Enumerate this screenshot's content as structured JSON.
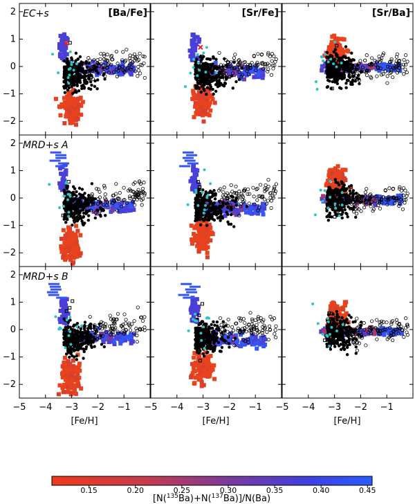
{
  "chart_data": {
    "type": "scatter",
    "description_rows": [
      "EC+s",
      "MRD+s A",
      "MRD+s B"
    ],
    "columns": [
      "[Ba/Fe]",
      "[Sr/Fe]",
      "[Sr/Ba]"
    ],
    "xlabel": "[Fe/H]",
    "xlim": [
      -5,
      0
    ],
    "ylim": [
      -2.5,
      2.3
    ],
    "xticks": [
      -5,
      -4,
      -3,
      -2,
      -1
    ],
    "xtick_labels": [
      "−5",
      "−4",
      "−3",
      "−2",
      "−1"
    ],
    "yticks": [
      -2,
      -1,
      0,
      1,
      2
    ],
    "ytick_labels": [
      "−2",
      "−1",
      "0",
      "1",
      "2"
    ],
    "colorbar": {
      "label": "[N(135Ba)+N(137Ba)]/N(Ba)",
      "label_parts": [
        "[N(",
        "135",
        "Ba)+N(",
        "137",
        "Ba)]/N(Ba)"
      ],
      "range": [
        0.11,
        0.455
      ],
      "ticks": [
        0.15,
        0.2,
        0.25,
        0.3,
        0.35,
        0.4,
        0.45
      ],
      "tick_labels": [
        "0.15",
        "0.20",
        "0.25",
        "0.30",
        "0.35",
        "0.40",
        "0.45"
      ],
      "colors": [
        "#e8431c",
        "#c63b4a",
        "#8a3a8f",
        "#3f3fd6",
        "#2a5cff"
      ]
    },
    "markers": {
      "filled_dots": "#000000",
      "open_circles": "#000000",
      "open_squares": "#000000",
      "cyan_points": "#2ec4c4",
      "red_x": "#e61e1e"
    },
    "series": [
      {
        "name": "EC+s [Ba/Fe]",
        "row": 0,
        "col": 0,
        "plume": "rise",
        "wing_y": 0.0,
        "red_core": -1.4,
        "cross": [
          -3.2,
          0.85
        ]
      },
      {
        "name": "EC+s [Sr/Fe]",
        "row": 0,
        "col": 1,
        "plume": "rise",
        "wing_y": -0.1,
        "red_core": -1.2,
        "cross": [
          -3.1,
          0.7
        ]
      },
      {
        "name": "EC+s [Sr/Ba]",
        "row": 0,
        "col": 2,
        "plume": "flat",
        "wing_y": 0.05,
        "red_core": 0.6
      },
      {
        "name": "MRD+s A [Ba/Fe]",
        "row": 1,
        "col": 0,
        "plume": "rise",
        "wing_y": -0.2,
        "red_core": -1.6
      },
      {
        "name": "MRD+s A [Sr/Fe]",
        "row": 1,
        "col": 1,
        "plume": "rise",
        "wing_y": -0.3,
        "red_core": -1.3
      },
      {
        "name": "MRD+s A [Sr/Ba]",
        "row": 1,
        "col": 2,
        "plume": "flat",
        "wing_y": 0.0,
        "red_core": 0.7
      },
      {
        "name": "MRD+s B [Ba/Fe]",
        "row": 2,
        "col": 0,
        "plume": "rise",
        "wing_y": -0.2,
        "red_core": -1.6
      },
      {
        "name": "MRD+s B [Sr/Fe]",
        "row": 2,
        "col": 1,
        "plume": "rise",
        "wing_y": -0.3,
        "red_core": -1.3
      },
      {
        "name": "MRD+s B [Sr/Ba]",
        "row": 2,
        "col": 2,
        "plume": "flat",
        "wing_y": 0.0,
        "red_core": 0.6
      }
    ]
  }
}
